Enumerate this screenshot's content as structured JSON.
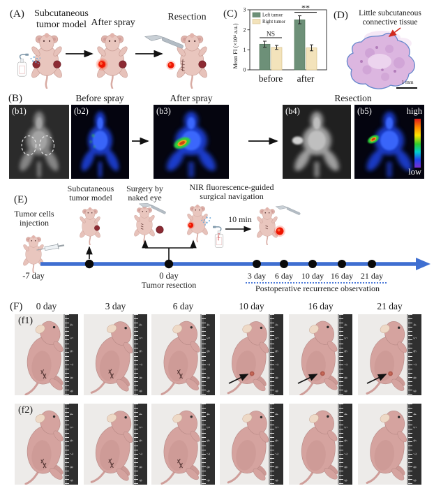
{
  "colors": {
    "bar_left_tumor": "#6d9078",
    "bar_right_tumor": "#f3e3bb",
    "timeline_blue": "#3f6fd1",
    "recurrence_arrow": "#111111",
    "histology_outline": "#6486cc",
    "hot_high": "#e01818",
    "hot_low": "#7a2fd0"
  },
  "chart_data": {
    "type": "bar",
    "categories": [
      "before",
      "after"
    ],
    "series": [
      {
        "name": "Left tumor",
        "color": "#6d9078",
        "edge": "#58795f",
        "values": [
          1.28,
          2.5
        ],
        "errors": [
          0.15,
          0.2
        ]
      },
      {
        "name": "Right tumor",
        "color": "#f3e3bb",
        "edge": "#d6c08c",
        "values": [
          1.12,
          1.1
        ],
        "errors": [
          0.1,
          0.15
        ]
      }
    ],
    "title": "",
    "xlabel": "",
    "ylabel": "Mean FI (×10⁴ a.u.)",
    "ylim": [
      0,
      3
    ],
    "yticks": [
      "0",
      "1",
      "2",
      "3"
    ],
    "annotations": [
      {
        "category": "before",
        "text": "NS"
      },
      {
        "category": "after",
        "text": "**"
      }
    ],
    "legend_position": "upper-left",
    "grid": false
  },
  "panelA": {
    "label": "(A)",
    "step1_line1": "Subcutaneous",
    "step1_line2": "tumor model",
    "step2": "After spray",
    "step3": "Resection"
  },
  "panelB": {
    "label": "(B)",
    "headers": [
      "Before spray",
      "After spray",
      "Resection"
    ],
    "images": [
      {
        "tag": "(b1)",
        "type": "gray-dashed"
      },
      {
        "tag": "(b2)",
        "type": "fluor-weak"
      },
      {
        "tag": "(b3)",
        "type": "fluor-hot"
      },
      {
        "tag": "(b4)",
        "type": "gray-post"
      },
      {
        "tag": "(b5)",
        "type": "fluor-hot-small"
      }
    ],
    "colorbar_high": "high",
    "colorbar_low": "low"
  },
  "panelC": {
    "label": "(C)"
  },
  "panelD": {
    "label": "(D)",
    "title_line1": "Little  subcutaneous",
    "title_line2": "connective tissue",
    "scale_bar": "1 mm"
  },
  "panelE": {
    "label": "(E)",
    "injection_line1": "Tumor cells",
    "injection_line2": "injection",
    "model_line1": "Subcutaneous",
    "model_line2": "tumor model",
    "surgery_line1": "Surgery by",
    "surgery_line2": "naked eye",
    "nir_line1": "NIR fluorescence-guided",
    "nir_line2": "surgical navigation",
    "delay": "10 min",
    "bottle_label": "Probe",
    "start_day": "-7 day",
    "zero_day": "0 day",
    "zero_caption": "Tumor resection",
    "obs_days": [
      "3 day",
      "6 day",
      "10 day",
      "16 day",
      "21 day"
    ],
    "obs_caption": "Postoperative recurrence observation"
  },
  "panelF": {
    "label": "(F)",
    "day_headers": [
      "0 day",
      "3 day",
      "6 day",
      "10 day",
      "16 day",
      "21 day"
    ],
    "ruler_digits": [
      "4",
      "5",
      "6",
      "7",
      "8",
      "9"
    ],
    "rows": [
      {
        "tag": "(f1)",
        "suture": [
          true,
          true,
          true,
          false,
          false,
          false
        ],
        "arrow": [
          false,
          false,
          false,
          true,
          true,
          true
        ]
      },
      {
        "tag": "(f2)",
        "suture": [
          true,
          true,
          true,
          false,
          false,
          false
        ],
        "arrow": [
          false,
          false,
          false,
          false,
          false,
          false
        ]
      }
    ]
  }
}
